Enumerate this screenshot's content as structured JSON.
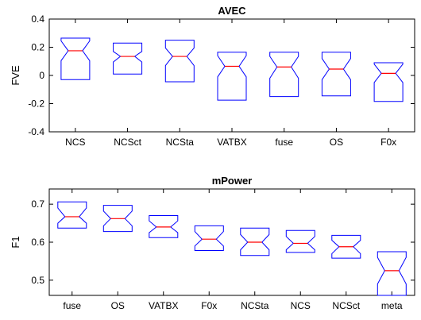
{
  "chart_data": [
    {
      "type": "boxplot",
      "notched": true,
      "title": "AVEC",
      "xlabel": "",
      "ylabel": "FVE",
      "ylim": [
        -0.4,
        0.4
      ],
      "yticks": [
        -0.4,
        -0.2,
        0,
        0.2,
        0.4
      ],
      "ytick_labels": [
        "-0.4",
        "-0.2",
        "0",
        "0.2",
        "0.4"
      ],
      "grid": false,
      "categories": [
        "NCS",
        "NCSct",
        "NCSta",
        "VATBX",
        "fuse",
        "OS",
        "F0x"
      ],
      "boxes": [
        {
          "q1": -0.03,
          "median": 0.175,
          "q3": 0.265,
          "notch_low": 0.105,
          "notch_high": 0.245
        },
        {
          "q1": 0.01,
          "median": 0.135,
          "q3": 0.23,
          "notch_low": 0.095,
          "notch_high": 0.17
        },
        {
          "q1": -0.045,
          "median": 0.135,
          "q3": 0.25,
          "notch_low": 0.07,
          "notch_high": 0.195
        },
        {
          "q1": -0.175,
          "median": 0.065,
          "q3": 0.165,
          "notch_low": -0.01,
          "notch_high": 0.14
        },
        {
          "q1": -0.15,
          "median": 0.06,
          "q3": 0.165,
          "notch_low": -0.02,
          "notch_high": 0.135
        },
        {
          "q1": -0.145,
          "median": 0.045,
          "q3": 0.165,
          "notch_low": -0.03,
          "notch_high": 0.12
        },
        {
          "q1": -0.185,
          "median": 0.015,
          "q3": 0.09,
          "notch_low": -0.05,
          "notch_high": 0.08
        }
      ],
      "colors": {
        "box": "#0000ff",
        "median": "#ff0000",
        "axes": "#000000"
      }
    },
    {
      "type": "boxplot",
      "notched": true,
      "title": "mPower",
      "xlabel": "",
      "ylabel": "F1",
      "ylim": [
        0.46,
        0.74
      ],
      "yticks": [
        0.5,
        0.6,
        0.7
      ],
      "ytick_labels": [
        "0.5",
        "0.6",
        "0.7"
      ],
      "grid": false,
      "categories": [
        "fuse",
        "OS",
        "VATBX",
        "F0x",
        "NCSta",
        "NCS",
        "NCSct",
        "meta"
      ],
      "boxes": [
        {
          "q1": 0.637,
          "median": 0.667,
          "q3": 0.706,
          "notch_low": 0.65,
          "notch_high": 0.69
        },
        {
          "q1": 0.628,
          "median": 0.662,
          "q3": 0.697,
          "notch_low": 0.643,
          "notch_high": 0.682
        },
        {
          "q1": 0.612,
          "median": 0.64,
          "q3": 0.67,
          "notch_low": 0.625,
          "notch_high": 0.656
        },
        {
          "q1": 0.578,
          "median": 0.608,
          "q3": 0.643,
          "notch_low": 0.59,
          "notch_high": 0.628
        },
        {
          "q1": 0.565,
          "median": 0.6,
          "q3": 0.637,
          "notch_low": 0.58,
          "notch_high": 0.62
        },
        {
          "q1": 0.573,
          "median": 0.597,
          "q3": 0.631,
          "notch_low": 0.58,
          "notch_high": 0.615
        },
        {
          "q1": 0.558,
          "median": 0.588,
          "q3": 0.618,
          "notch_low": 0.57,
          "notch_high": 0.605
        },
        {
          "q1": 0.46,
          "median": 0.525,
          "q3": 0.575,
          "notch_low": 0.49,
          "notch_high": 0.56
        }
      ],
      "colors": {
        "box": "#0000ff",
        "median": "#ff0000",
        "axes": "#000000"
      }
    }
  ]
}
